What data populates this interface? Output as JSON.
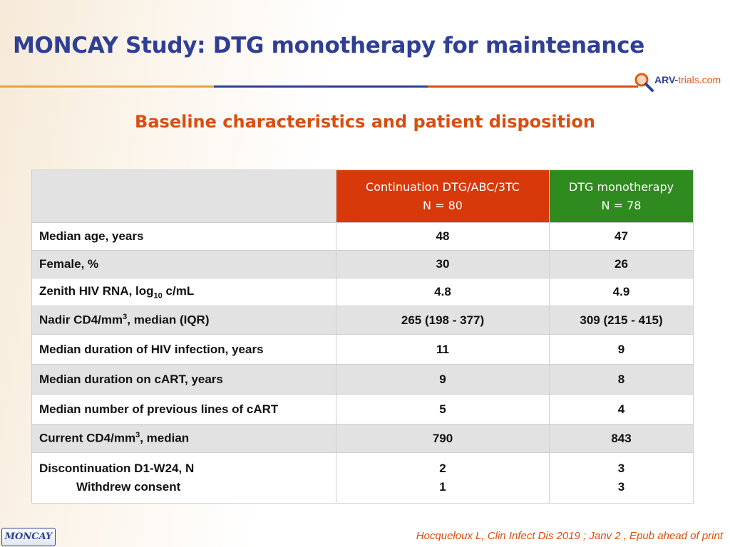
{
  "title": "MONCAY Study: DTG monotherapy for maintenance",
  "subtitle": "Baseline characteristics and patient disposition",
  "logo": {
    "arv": "ARV-",
    "trials": "trials",
    "com": ".com"
  },
  "colors": {
    "title": "#2f3f95",
    "accent": "#d94e10",
    "continuation": "#d7390b",
    "monotherapy": "#2f8a1f"
  },
  "table": {
    "columns": [
      {
        "line1": "Continuation DTG/ABC/3TC",
        "line2": "N = 80"
      },
      {
        "line1": "DTG monotherapy",
        "line2": "N = 78"
      }
    ],
    "rows": [
      {
        "label": "Median age, years",
        "cont": "48",
        "mono": "47"
      },
      {
        "label": "Female, %",
        "cont": "30",
        "mono": "26"
      },
      {
        "label_pre": "Zenith HIV RNA, log",
        "label_sub": "10",
        "label_post": " c/mL",
        "cont": "4.8",
        "mono": "4.9"
      },
      {
        "label_pre": "Nadir CD4/mm",
        "label_sup": "3",
        "label_post": ", median (IQR)",
        "cont": "265 (198 - 377)",
        "mono": "309 (215 - 415)"
      },
      {
        "label": "Median duration of HIV infection, years",
        "cont": "11",
        "mono": "9"
      },
      {
        "label": "Median duration on cART, years",
        "cont": "9",
        "mono": "8"
      },
      {
        "label": "Median number of previous lines of cART",
        "cont": "5",
        "mono": "4"
      },
      {
        "label_pre": "Current CD4/mm",
        "label_sup": "3",
        "label_post": ", median",
        "cont": "790",
        "mono": "843"
      },
      {
        "label": "Discontinuation D1-W24, N",
        "sublabel": "Withdrew consent",
        "cont": "2",
        "cont_sub": "1",
        "mono": "3",
        "mono_sub": "3"
      }
    ]
  },
  "footer": {
    "tag": "MONCAY",
    "reference": "Hocqueloux L, Clin Infect Dis 2019 ; Janv 2 , Epub ahead of print"
  }
}
